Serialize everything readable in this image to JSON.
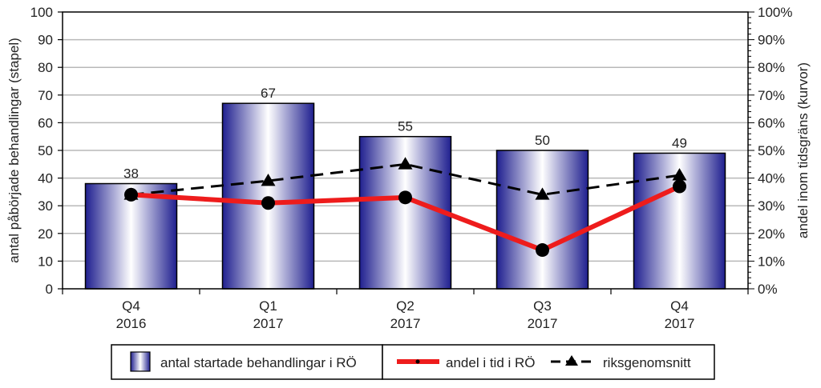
{
  "chart_data": {
    "type": "bar",
    "categories": [
      "Q4\n2016",
      "Q1\n2017",
      "Q2\n2017",
      "Q3\n2017",
      "Q4\n2017"
    ],
    "series": [
      {
        "name": "antal startade behandlingar i RÖ",
        "type": "bar",
        "axis": "left",
        "values": [
          38,
          67,
          55,
          50,
          49
        ]
      },
      {
        "name": "andel i tid i RÖ",
        "type": "line",
        "axis": "right",
        "values": [
          34,
          31,
          33,
          14,
          37
        ],
        "color": "#ee1c1c"
      },
      {
        "name": "riksgenomsnitt",
        "type": "line",
        "axis": "right",
        "style": "dashed",
        "values": [
          34,
          39,
          45,
          34,
          41
        ],
        "color": "#000000"
      }
    ],
    "data_labels": [
      "38",
      "67",
      "55",
      "50",
      "49"
    ],
    "ylabel": "antal påbörjade behandlingar (stapel)",
    "y2label": "andel inom tidsgräns (kurvor)",
    "ylim": [
      0,
      100
    ],
    "y2lim": [
      0,
      100
    ],
    "yticks": [
      "0",
      "10",
      "20",
      "30",
      "40",
      "50",
      "60",
      "70",
      "80",
      "90",
      "100"
    ],
    "y2ticks": [
      "0%",
      "10%",
      "20%",
      "30%",
      "40%",
      "50%",
      "60%",
      "70%",
      "80%",
      "90%",
      "100%"
    ],
    "grid": true,
    "legend_position": "bottom",
    "colors": {
      "bar_dark": "#1f1f8f",
      "bar_light": "#ffffff",
      "line_red": "#ee1c1c",
      "line_black": "#000000",
      "grid": "#b8b8b8"
    }
  }
}
